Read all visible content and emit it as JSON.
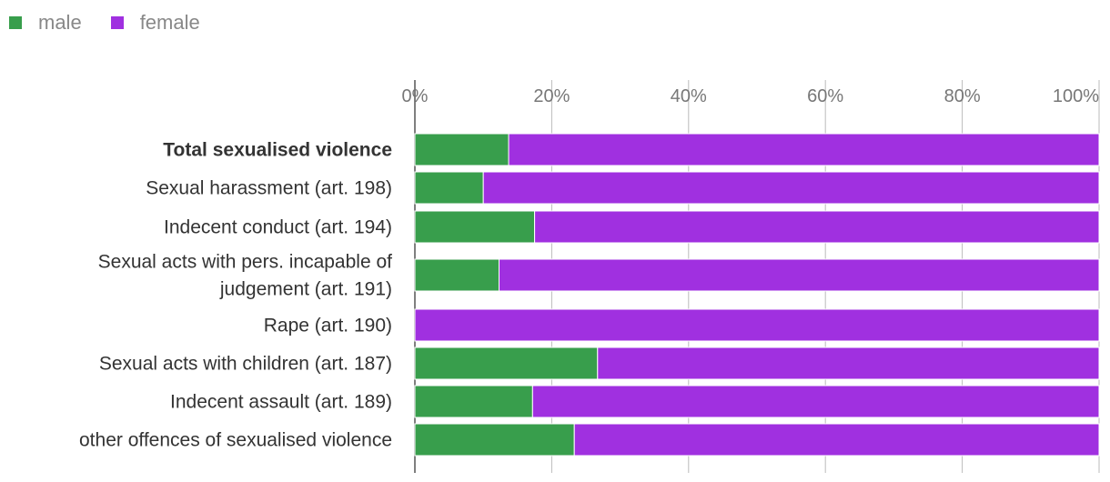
{
  "legend": {
    "male": {
      "label": "male",
      "color": "#389e4c"
    },
    "female": {
      "label": "female",
      "color": "#a030e0"
    }
  },
  "chart_data": {
    "type": "bar",
    "orientation": "horizontal",
    "stacked": true,
    "title": "",
    "xlabel": "",
    "ylabel": "",
    "xlim": [
      0,
      100
    ],
    "x_ticks": [
      "0%",
      "20%",
      "40%",
      "60%",
      "80%",
      "100%"
    ],
    "grid": true,
    "legend_position": "top-left",
    "categories": [
      {
        "lines": [
          "Total sexualised violence"
        ],
        "bold": true
      },
      {
        "lines": [
          "Sexual harassment (art. 198)"
        ],
        "bold": false
      },
      {
        "lines": [
          "Indecent conduct (art. 194)"
        ],
        "bold": false
      },
      {
        "lines": [
          "Sexual acts with pers. incapable of",
          "judgement (art. 191)"
        ],
        "bold": false
      },
      {
        "lines": [
          "Rape (art. 190)"
        ],
        "bold": false
      },
      {
        "lines": [
          "Sexual acts with children (art. 187)"
        ],
        "bold": false
      },
      {
        "lines": [
          "Indecent assault (art. 189)"
        ],
        "bold": false
      },
      {
        "lines": [
          "other offences of sexualised violence"
        ],
        "bold": false
      }
    ],
    "series": [
      {
        "name": "male",
        "color": "#389e4c",
        "values": [
          13.7,
          10.0,
          17.5,
          12.3,
          0.0,
          26.7,
          17.2,
          23.3
        ]
      },
      {
        "name": "female",
        "color": "#a030e0",
        "values": [
          86.3,
          90.0,
          82.5,
          87.7,
          100.0,
          73.3,
          82.8,
          76.7
        ]
      }
    ]
  }
}
